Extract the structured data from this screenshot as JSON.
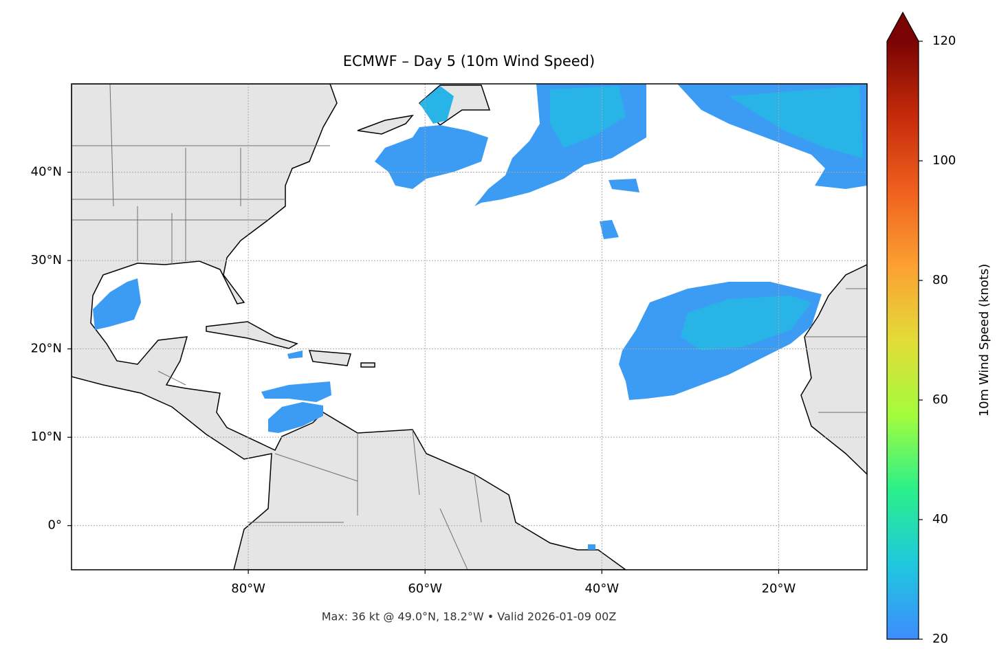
{
  "chart_data": {
    "type": "map",
    "title": "ECMWF – Day 5 (10m Wind Speed)",
    "footer": "Max: 36 kt @ 49.0°N, 18.2°W • Valid 2026-01-09 00Z",
    "xlim": [
      -100,
      -10
    ],
    "ylim": [
      -5,
      50
    ],
    "xticks": [
      {
        "value": -80,
        "label": "80°W"
      },
      {
        "value": -60,
        "label": "60°W"
      },
      {
        "value": -40,
        "label": "40°W"
      },
      {
        "value": -20,
        "label": "20°W"
      }
    ],
    "yticks": [
      {
        "value": 0,
        "label": "0°"
      },
      {
        "value": 10,
        "label": "10°N"
      },
      {
        "value": 20,
        "label": "20°N"
      },
      {
        "value": 30,
        "label": "30°N"
      },
      {
        "value": 40,
        "label": "40°N"
      }
    ],
    "grid": true,
    "colorbar": {
      "label": "10m Wind Speed (knots)",
      "lim": [
        20,
        120
      ],
      "ticks": [
        20,
        40,
        60,
        80,
        100,
        120
      ],
      "colors": [
        "#3e8cfe",
        "#1fc8de",
        "#2af08a",
        "#a4fc3c",
        "#e2dc38",
        "#fca032",
        "#f0601e",
        "#c52b0b",
        "#7a0403"
      ]
    }
  }
}
